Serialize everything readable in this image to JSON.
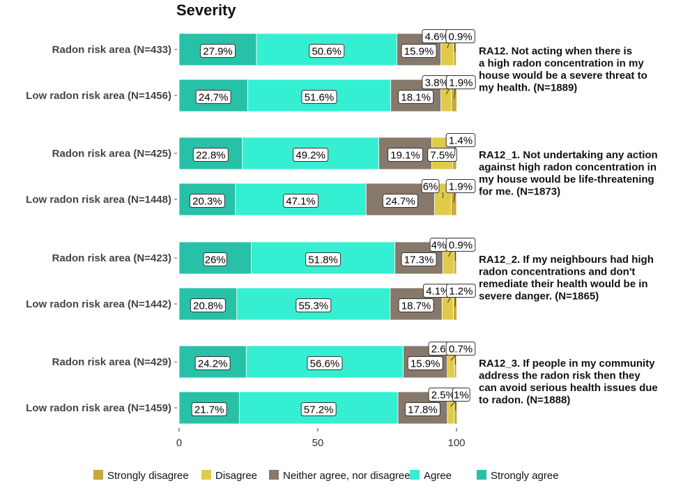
{
  "chart_data": {
    "type": "bar",
    "orientation": "horizontal-stacked",
    "title": "Severity",
    "xlim": [
      0,
      100
    ],
    "xticks": [
      0,
      50,
      100
    ],
    "legend_position": "bottom",
    "legend": [
      "Strongly disagree",
      "Disagree",
      "Neither agree, nor disagree",
      "Agree",
      "Strongly agree"
    ],
    "stack_order": [
      "Strongly agree",
      "Agree",
      "Neither agree, nor disagree",
      "Disagree",
      "Strongly disagree"
    ],
    "colors": {
      "Strongly agree": "#27c1a7",
      "Agree": "#34efd2",
      "Neither agree, nor disagree": "#86786a",
      "Disagree": "#e0cb48",
      "Strongly disagree": "#c9a93b"
    },
    "groups": [
      {
        "question": "RA12. Not acting when there is a high radon concentration in my house would be a severe threat to my health. (N=1889)",
        "question_lines": [
          "RA12. Not acting when there is",
          "a high radon concentration in my",
          "house would be a severe threat to",
          "my health. (N=1889)"
        ],
        "rows": [
          {
            "category": "Radon risk area (N=433)",
            "values": [
              27.9,
              50.6,
              15.9,
              4.6,
              0.9
            ],
            "labels": [
              "27.9%",
              "50.6%",
              "15.9%",
              "4.6%",
              "0.9%"
            ]
          },
          {
            "category": "Low radon risk area (N=1456)",
            "values": [
              24.7,
              51.6,
              18.1,
              3.8,
              1.9
            ],
            "labels": [
              "24.7%",
              "51.6%",
              "18.1%",
              "3.8%",
              "1.9%"
            ]
          }
        ]
      },
      {
        "question": "RA12_1. Not undertaking any action against high radon concentration in my house would be life-threatening for me. (N=1873)",
        "question_lines": [
          "RA12_1. Not undertaking any action",
          "against high radon concentration in",
          "my house would be life-threatening",
          "for me. (N=1873)"
        ],
        "rows": [
          {
            "category": "Radon risk area (N=425)",
            "values": [
              22.8,
              49.2,
              19.1,
              7.5,
              1.4
            ],
            "labels": [
              "22.8%",
              "49.2%",
              "19.1%",
              "7.5%",
              "1.4%"
            ]
          },
          {
            "category": "Low radon risk area (N=1448)",
            "values": [
              20.3,
              47.1,
              24.7,
              6.0,
              1.9
            ],
            "labels": [
              "20.3%",
              "47.1%",
              "24.7%",
              "6%",
              "1.9%"
            ]
          }
        ]
      },
      {
        "question": "RA12_2. If my neighbours had high radon concentrations and don't remediate their health would be in severe danger. (N=1865)",
        "question_lines": [
          "RA12_2. If my neighbours had high",
          "radon concentrations and don't",
          "remediate their health would be in",
          "severe danger. (N=1865)"
        ],
        "rows": [
          {
            "category": "Radon risk area (N=423)",
            "values": [
              26.0,
              51.8,
              17.3,
              4.0,
              0.9
            ],
            "labels": [
              "26%",
              "51.8%",
              "17.3%",
              "4%",
              "0.9%"
            ]
          },
          {
            "category": "Low radon risk area (N=1442)",
            "values": [
              20.8,
              55.3,
              18.7,
              4.1,
              1.2
            ],
            "labels": [
              "20.8%",
              "55.3%",
              "18.7%",
              "4.1%",
              "1.2%"
            ]
          }
        ]
      },
      {
        "question": "RA12_3. If people in my community address the radon risk then they can avoid serious health issues due to radon. (N=1888)",
        "question_lines": [
          "RA12_3. If people in my community",
          "address the radon risk then they",
          "can avoid serious health issues due",
          "to radon. (N=1888)"
        ],
        "rows": [
          {
            "category": "Radon risk area (N=429)",
            "values": [
              24.2,
              56.6,
              15.9,
              2.6,
              0.7
            ],
            "labels": [
              "24.2%",
              "56.6%",
              "15.9%",
              "2.6%",
              "0.7%"
            ]
          },
          {
            "category": "Low radon risk area (N=1459)",
            "values": [
              21.7,
              57.2,
              17.8,
              2.5,
              1.0
            ],
            "labels": [
              "21.7%",
              "57.2%",
              "17.8%",
              "2.5%",
              "1%"
            ]
          }
        ]
      }
    ]
  }
}
